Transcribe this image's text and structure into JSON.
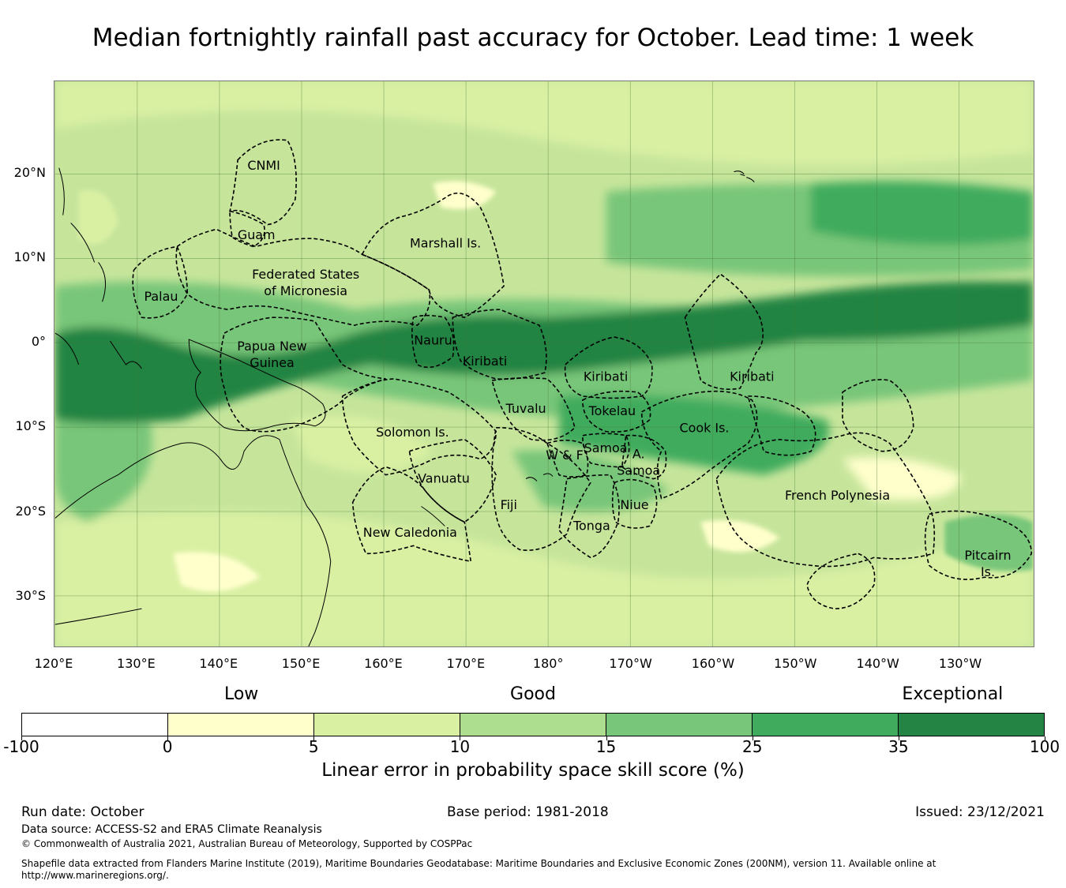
{
  "title": "Median fortnightly rainfall past accuracy for October. Lead time: 1 week",
  "map": {
    "lat_ticks": [
      "20°N",
      "10°N",
      "0°",
      "10°S",
      "20°S",
      "30°S"
    ],
    "lon_ticks": [
      "120°E",
      "130°E",
      "140°E",
      "150°E",
      "160°E",
      "170°E",
      "180°",
      "170°W",
      "160°W",
      "150°W",
      "140°W",
      "130°W"
    ],
    "extent": {
      "lon_min": 120,
      "lon_max": 239,
      "lat_min": -36,
      "lat_max": 31
    },
    "regions": [
      {
        "name": "CNMI",
        "lines": [
          "CNMI"
        ],
        "lon": 145.4,
        "lat": 20.5
      },
      {
        "name": "Guam",
        "lines": [
          "Guam"
        ],
        "lon": 144.5,
        "lat": 12.3
      },
      {
        "name": "Marshall Is.",
        "lines": [
          "Marshall Is."
        ],
        "lon": 167.5,
        "lat": 11.3
      },
      {
        "name": "Federated States of Micronesia",
        "lines": [
          "Federated States",
          "of Micronesia"
        ],
        "lon": 150.5,
        "lat": 7.6
      },
      {
        "name": "Palau",
        "lines": [
          "Palau"
        ],
        "lon": 132.9,
        "lat": 5.0
      },
      {
        "name": "Papua New Guinea",
        "lines": [
          "Papua New",
          "Guinea"
        ],
        "lon": 146.4,
        "lat": -0.9
      },
      {
        "name": "Nauru",
        "lines": [
          "Nauru"
        ],
        "lon": 166.0,
        "lat": -0.2
      },
      {
        "name": "Kiribati (Gilbert)",
        "lines": [
          "Kiribati"
        ],
        "lon": 172.3,
        "lat": -2.7
      },
      {
        "name": "Kiribati (Phoenix)",
        "lines": [
          "Kiribati"
        ],
        "lon": 187.0,
        "lat": -4.5
      },
      {
        "name": "Kiribati (Line)",
        "lines": [
          "Kiribati"
        ],
        "lon": 204.8,
        "lat": -4.5
      },
      {
        "name": "Tuvalu",
        "lines": [
          "Tuvalu"
        ],
        "lon": 177.3,
        "lat": -8.3
      },
      {
        "name": "Tokelau",
        "lines": [
          "Tokelau"
        ],
        "lon": 187.8,
        "lat": -8.6
      },
      {
        "name": "Cook Is.",
        "lines": [
          "Cook Is."
        ],
        "lon": 199.0,
        "lat": -10.6
      },
      {
        "name": "Solomon Is.",
        "lines": [
          "Solomon Is."
        ],
        "lon": 163.5,
        "lat": -11.1
      },
      {
        "name": "Samoa",
        "lines": [
          "Samoa"
        ],
        "lon": 187.0,
        "lat": -13.0
      },
      {
        "name": "W & F",
        "lines": [
          "W & F"
        ],
        "lon": 182.0,
        "lat": -13.8
      },
      {
        "name": "A. Samoa",
        "lines": [
          "A.",
          "Samoa"
        ],
        "lon": 191.0,
        "lat": -13.7
      },
      {
        "name": "Vanuatu",
        "lines": [
          "Vanuatu"
        ],
        "lon": 167.3,
        "lat": -16.6
      },
      {
        "name": "Fiji",
        "lines": [
          "Fiji"
        ],
        "lon": 175.2,
        "lat": -19.7
      },
      {
        "name": "Niue",
        "lines": [
          "Niue"
        ],
        "lon": 190.5,
        "lat": -19.7
      },
      {
        "name": "Tonga",
        "lines": [
          "Tonga"
        ],
        "lon": 185.3,
        "lat": -22.2
      },
      {
        "name": "French Polynesia",
        "lines": [
          "French Polynesia"
        ],
        "lon": 215.2,
        "lat": -18.6
      },
      {
        "name": "New Caledonia",
        "lines": [
          "New Caledonia"
        ],
        "lon": 163.2,
        "lat": -23.0
      },
      {
        "name": "Pitcairn Is.",
        "lines": [
          "Pitcairn",
          "Is."
        ],
        "lon": 233.5,
        "lat": -25.7
      }
    ]
  },
  "legend": {
    "categories": [
      "Low",
      "Good",
      "Exceptional"
    ],
    "category_positions": [
      0.215,
      0.5,
      0.91
    ],
    "bins": [
      {
        "from": "-100",
        "to": "0",
        "color": "#ffffff"
      },
      {
        "from": "0",
        "to": "5",
        "color": "#ffffcc"
      },
      {
        "from": "5",
        "to": "10",
        "color": "#d9f0a3"
      },
      {
        "from": "10",
        "to": "15",
        "color": "#addd8e"
      },
      {
        "from": "15",
        "to": "25",
        "color": "#78c679"
      },
      {
        "from": "25",
        "to": "35",
        "color": "#41ab5d"
      },
      {
        "from": "35",
        "to": "100",
        "color": "#238443"
      }
    ],
    "tick_labels": [
      "-100",
      "0",
      "5",
      "10",
      "15",
      "25",
      "35",
      "100"
    ],
    "axis_label": "Linear error in probability space skill score (%)"
  },
  "footer": {
    "run_date": "Run date: October",
    "base_period": "Base period: 1981-2018",
    "issued": "Issued: 23/12/2021",
    "data_source": "Data source: ACCESS-S2 and ERA5 Climate Reanalysis",
    "copyright": "© Commonwealth of Australia 2021, Australian Bureau of Meteorology, Supported by COSPPac",
    "shapefile_line1": "Shapefile data extracted from Flanders Marine Institute (2019), Maritime Boundaries Geodatabase: Maritime Boundaries and Exclusive Economic Zones (200NM), version 11. Available online at",
    "shapefile_line2": "http://www.marineregions.org/."
  }
}
